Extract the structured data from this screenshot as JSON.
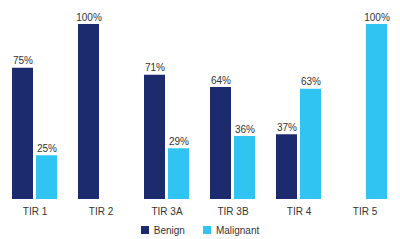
{
  "chart_data": {
    "type": "bar",
    "categories": [
      "TIR 1",
      "TIR 2",
      "TIR 3A",
      "TIR 3B",
      "TIR 4",
      "TIR 5"
    ],
    "series": [
      {
        "name": "Benign",
        "color": "#1c2a6e",
        "values": [
          75,
          100,
          71,
          64,
          37,
          null
        ],
        "value_labels": [
          "75%",
          "100%",
          "71%",
          "64%",
          "37%",
          null
        ]
      },
      {
        "name": "Malignant",
        "color": "#2fc4f2",
        "values": [
          25,
          null,
          29,
          36,
          63,
          100
        ],
        "value_labels": [
          "25%",
          null,
          "29%",
          "36%",
          "63%",
          "100%"
        ]
      }
    ],
    "ylim": [
      0,
      100
    ],
    "data_labels": true,
    "tick_labels": "x",
    "legend": "bottom"
  }
}
